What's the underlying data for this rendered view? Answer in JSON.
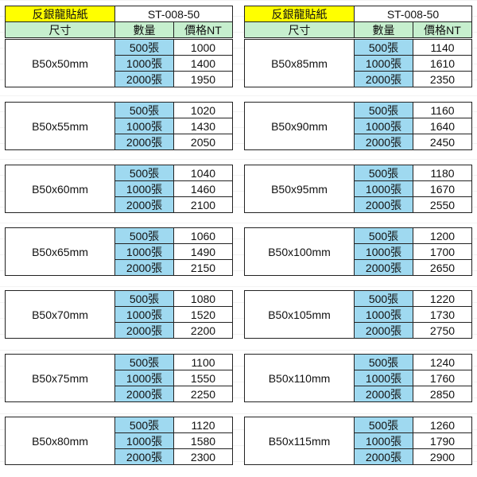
{
  "colors": {
    "title": "#ffff00",
    "header": "#c6efce",
    "qty": "#9fd9f0"
  },
  "tables": [
    {
      "title": "反銀龍貼紙",
      "code": "ST-008-50",
      "headers": [
        "尺寸",
        "數量",
        "價格NT"
      ],
      "blocks": [
        {
          "size": "B50x50mm",
          "rows": [
            [
              "500張",
              "1000"
            ],
            [
              "1000張",
              "1400"
            ],
            [
              "2000張",
              "1950"
            ]
          ]
        },
        {
          "size": "B50x55mm",
          "rows": [
            [
              "500張",
              "1020"
            ],
            [
              "1000張",
              "1430"
            ],
            [
              "2000張",
              "2050"
            ]
          ]
        },
        {
          "size": "B50x60mm",
          "rows": [
            [
              "500張",
              "1040"
            ],
            [
              "1000張",
              "1460"
            ],
            [
              "2000張",
              "2100"
            ]
          ]
        },
        {
          "size": "B50x65mm",
          "rows": [
            [
              "500張",
              "1060"
            ],
            [
              "1000張",
              "1490"
            ],
            [
              "2000張",
              "2150"
            ]
          ]
        },
        {
          "size": "B50x70mm",
          "rows": [
            [
              "500張",
              "1080"
            ],
            [
              "1000張",
              "1520"
            ],
            [
              "2000張",
              "2200"
            ]
          ]
        },
        {
          "size": "B50x75mm",
          "rows": [
            [
              "500張",
              "1100"
            ],
            [
              "1000張",
              "1550"
            ],
            [
              "2000張",
              "2250"
            ]
          ]
        },
        {
          "size": "B50x80mm",
          "rows": [
            [
              "500張",
              "1120"
            ],
            [
              "1000張",
              "1580"
            ],
            [
              "2000張",
              "2300"
            ]
          ]
        }
      ]
    },
    {
      "title": "反銀龍貼紙",
      "code": "ST-008-50",
      "headers": [
        "尺寸",
        "數量",
        "價格NT"
      ],
      "blocks": [
        {
          "size": "B50x85mm",
          "rows": [
            [
              "500張",
              "1140"
            ],
            [
              "1000張",
              "1610"
            ],
            [
              "2000張",
              "2350"
            ]
          ]
        },
        {
          "size": "B50x90mm",
          "rows": [
            [
              "500張",
              "1160"
            ],
            [
              "1000張",
              "1640"
            ],
            [
              "2000張",
              "2450"
            ]
          ]
        },
        {
          "size": "B50x95mm",
          "rows": [
            [
              "500張",
              "1180"
            ],
            [
              "1000張",
              "1670"
            ],
            [
              "2000張",
              "2550"
            ]
          ]
        },
        {
          "size": "B50x100mm",
          "rows": [
            [
              "500張",
              "1200"
            ],
            [
              "1000張",
              "1700"
            ],
            [
              "2000張",
              "2650"
            ]
          ]
        },
        {
          "size": "B50x105mm",
          "rows": [
            [
              "500張",
              "1220"
            ],
            [
              "1000張",
              "1730"
            ],
            [
              "2000張",
              "2750"
            ]
          ]
        },
        {
          "size": "B50x110mm",
          "rows": [
            [
              "500張",
              "1240"
            ],
            [
              "1000張",
              "1760"
            ],
            [
              "2000張",
              "2850"
            ]
          ]
        },
        {
          "size": "B50x115mm",
          "rows": [
            [
              "500張",
              "1260"
            ],
            [
              "1000張",
              "1790"
            ],
            [
              "2000張",
              "2900"
            ]
          ]
        }
      ]
    }
  ]
}
